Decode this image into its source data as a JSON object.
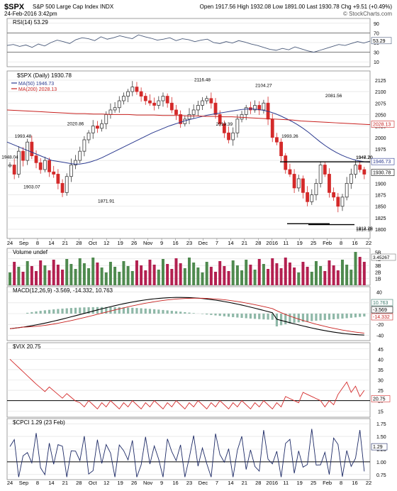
{
  "header": {
    "symbol": "$SPX",
    "name": "S&P 500 Large Cap Index",
    "exchange": "INDX",
    "date_time": "24-Feb-2016 3:42pm",
    "watermark": "© StockCharts.com",
    "quote": "Open 1917.56  High 1932.08  Low 1891.00  Last 1930.78  Chg +9.51 (+0.49%)"
  },
  "colors": {
    "up": "#3a3a3a",
    "down": "#d42a2a",
    "ma50": "#2b3a8f",
    "ma200": "#c8201e",
    "vol_up": "#4f8a4f",
    "vol_down": "#b32050",
    "panel_bg": "#ffffff",
    "grid": "#dddddd"
  },
  "chart_data": [
    {
      "type": "line",
      "panel": "rsi",
      "title": "RSI(14) 53.29",
      "ylim": [
        0,
        100
      ],
      "yticks": [
        10,
        30,
        50,
        70,
        90
      ],
      "levels": [
        30,
        70
      ],
      "last_label": "53.29",
      "values": [
        44,
        46,
        42,
        45,
        40,
        47,
        43,
        50,
        55,
        52,
        48,
        56,
        60,
        58,
        54,
        62,
        57,
        60,
        64,
        61,
        58,
        66,
        62,
        59,
        55,
        57,
        60,
        54,
        58,
        56,
        52,
        55,
        57,
        50,
        48,
        52,
        49,
        54,
        51,
        47,
        44,
        40,
        36,
        34,
        38,
        35,
        41,
        37,
        33,
        30,
        34,
        38,
        42,
        46,
        44,
        48,
        52,
        49,
        53
      ]
    },
    {
      "type": "candlestick",
      "panel": "price",
      "title": "$SPX (Daily) 1930.78",
      "legend": [
        {
          "name": "MA(50) 1946.73"
        },
        {
          "name": "MA(200) 2028.13"
        }
      ],
      "ylim": [
        1780,
        2145
      ],
      "yticks": [
        1800,
        1825,
        1850,
        1875,
        1900,
        1925,
        1950,
        1975,
        2000,
        2025,
        2050,
        2075,
        2100,
        2125
      ],
      "close": [
        1940,
        1920,
        1970,
        1950,
        1990,
        1960,
        1945,
        1930,
        1950,
        1925,
        1920,
        1900,
        1880,
        1915,
        1940,
        1950,
        1970,
        1995,
        2010,
        2025,
        2020,
        2030,
        2050,
        2060,
        2065,
        2080,
        2090,
        2100,
        2110,
        2100,
        2090,
        2080,
        2075,
        2070,
        2080,
        2090,
        2075,
        2060,
        2050,
        2030,
        2040,
        2050,
        2060,
        2070,
        2080,
        2085,
        2075,
        2050,
        2030,
        2010,
        1995,
        2010,
        2040,
        2050,
        2065,
        2060,
        2070,
        2060,
        2075,
        2040,
        2000,
        1990,
        1960,
        1930,
        1920,
        1890,
        1910,
        1880,
        1860,
        1875,
        1900,
        1940,
        1920,
        1880,
        1870,
        1850,
        1870,
        1900,
        1920,
        1940,
        1930,
        1920
      ],
      "price_labels": [
        {
          "text": "1948.04",
          "i": 0,
          "v": 1948.04
        },
        {
          "text": "1993.48",
          "i": 3,
          "v": 1993.48
        },
        {
          "text": "1903.07",
          "i": 5,
          "v": 1903.07
        },
        {
          "text": "2020.86",
          "i": 15,
          "v": 2020.86
        },
        {
          "text": "1871.91",
          "i": 22,
          "v": 1871.91
        },
        {
          "text": "2116.48",
          "i": 44,
          "v": 2116.48
        },
        {
          "text": "2019.39",
          "i": 49,
          "v": 2019.39
        },
        {
          "text": "2104.27",
          "i": 58,
          "v": 2104.27
        },
        {
          "text": "1993.26",
          "i": 64,
          "v": 1993.26
        },
        {
          "text": "2081.56",
          "i": 74,
          "v": 2081.56
        },
        {
          "text": "1947.20",
          "i": 94,
          "v": 1947.2
        },
        {
          "text": "1812.29",
          "i": 86,
          "v": 1812.29
        },
        {
          "text": "1810.10",
          "i": 103,
          "v": 1810.1
        },
        {
          "text": "1946.70",
          "i": 108,
          "v": 1946.7
        }
      ],
      "right_labels": [
        {
          "text": "2028.13",
          "v": 2028.13,
          "color": "#c8201e"
        },
        {
          "text": "1946.73",
          "v": 1946.73,
          "color": "#2b3a8f"
        },
        {
          "text": "1930.78",
          "v": 1930.78,
          "color": "#000000"
        }
      ],
      "ma50": [
        1990,
        1985,
        1980,
        1975,
        1970,
        1965,
        1960,
        1955,
        1950,
        1948,
        1946,
        1944,
        1942,
        1942,
        1944,
        1947,
        1951,
        1956,
        1962,
        1968,
        1974,
        1980,
        1986,
        1992,
        1998,
        2004,
        2010,
        2015,
        2020,
        2025,
        2029,
        2033,
        2037,
        2040,
        2043,
        2046,
        2049,
        2051,
        2053,
        2055,
        2057,
        2059,
        2061,
        2062,
        2062,
        2061,
        2059,
        2056,
        2052,
        2047,
        2041,
        2035,
        2028,
        2020,
        2011,
        2001,
        1991,
        1982,
        1974,
        1967,
        1961,
        1956,
        1952,
        1949,
        1947,
        1946
      ],
      "ma200": [
        2060,
        2059,
        2058,
        2057,
        2056,
        2055,
        2054,
        2053,
        2052,
        2052,
        2051,
        2051,
        2050,
        2050,
        2050,
        2049,
        2049,
        2049,
        2048,
        2048,
        2048,
        2047,
        2047,
        2046,
        2046,
        2045,
        2045,
        2044,
        2043,
        2042,
        2041,
        2040,
        2039,
        2038,
        2036,
        2035,
        2034,
        2033,
        2032,
        2031,
        2030,
        2029,
        2028
      ]
    },
    {
      "type": "bar",
      "panel": "volume",
      "title": "Volume undef",
      "yticks_labels": [
        "1B",
        "2B",
        "3B",
        "4B",
        "5B"
      ],
      "last_label": "3.45267"
    },
    {
      "type": "line",
      "panel": "macd",
      "title": "MACD(12,26,9) -3.569, -14.332, 10.763",
      "yticks": [
        -40,
        -20,
        0,
        20,
        40
      ],
      "last_labels": [
        "10.763",
        "-3.569",
        "-14.332"
      ]
    },
    {
      "type": "line",
      "panel": "vix",
      "title": "$VIX 20.75",
      "yticks": [
        15,
        20,
        25,
        30,
        35,
        40,
        45
      ],
      "level": 20,
      "last_label": "20.75"
    },
    {
      "type": "line",
      "panel": "cpci",
      "title": "$CPCI 1.29 (23 Feb)",
      "yticks": [
        0.75,
        1.0,
        1.25,
        1.5,
        1.75
      ],
      "level": 1.0,
      "last_label": "1.29"
    }
  ],
  "x_axis": {
    "labels": [
      "24",
      "Sep",
      "8",
      "14",
      "21",
      "28",
      "Oct",
      "12",
      "19",
      "26",
      "Nov",
      "9",
      "16",
      "23",
      "Dec",
      "7",
      "14",
      "21",
      "28",
      "2016",
      "11",
      "19",
      "25",
      "Feb",
      "8",
      "16",
      "22"
    ]
  }
}
